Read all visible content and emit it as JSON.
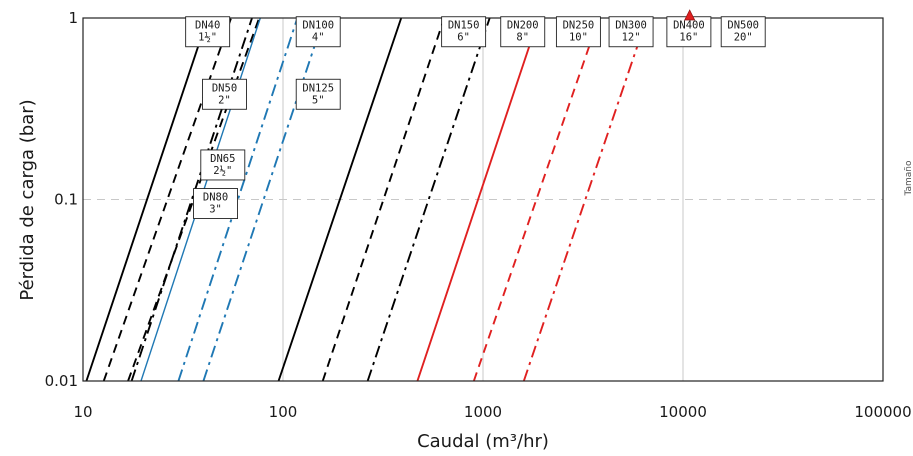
{
  "chart_data": {
    "type": "line",
    "xlabel": "Caudal (m³/hr)",
    "ylabel": "Pérdida de carga (bar)",
    "xscale": "log",
    "yscale": "log",
    "xlim": [
      10,
      100000
    ],
    "ylim": [
      0.01,
      1
    ],
    "x_ticks": [
      "10",
      "100",
      "1000",
      "10000",
      "100000"
    ],
    "y_ticks": [
      "0.01",
      "0.1",
      "1"
    ],
    "grid": "vertical lines at decades, dashed horizontal line at 0.1",
    "side_note": "Tamaño",
    "marker": {
      "shape": "triangle",
      "color": "#e02020",
      "x": 10800,
      "y": 1
    },
    "series": [
      {
        "label": [
          "DN40",
          "1½\""
        ],
        "color": "#000000",
        "style": "solid",
        "x": [
          10.4,
          42
        ],
        "y": [
          0.01,
          1
        ],
        "box_at": [
          42,
          0.84
        ]
      },
      {
        "label": [
          "DN50",
          "2\""
        ],
        "color": "#000000",
        "style": "dash",
        "x": [
          12.7,
          55
        ],
        "y": [
          0.01,
          1
        ],
        "box_at": [
          51,
          0.38
        ]
      },
      {
        "label": [
          "DN65",
          "2½\""
        ],
        "color": "#000000",
        "style": "dashdot",
        "x": [
          17.5,
          70
        ],
        "y": [
          0.01,
          1
        ],
        "box_at": [
          50,
          0.155
        ]
      },
      {
        "label": [
          "DN80",
          "3\""
        ],
        "color": "#000000",
        "style": "dash",
        "x": [
          16.8,
          76
        ],
        "y": [
          0.01,
          1
        ],
        "box_at": [
          46,
          0.095
        ]
      },
      {
        "label": [
          "DN100",
          "4\""
        ],
        "color": "#1f78b4",
        "style": "solid",
        "x": [
          19.5,
          77
        ],
        "y": [
          0.01,
          1
        ],
        "box_at": [
          150,
          0.84
        ]
      },
      {
        "label": [
          "DN125",
          "5\""
        ],
        "color": "#1f78b4",
        "style": "dashdot",
        "x": [
          30,
          118
        ],
        "y": [
          0.01,
          1
        ],
        "box_at": [
          150,
          0.38
        ]
      },
      {
        "label": [],
        "color": "#1f78b4",
        "style": "dashdot",
        "x": [
          40,
          160
        ],
        "y": [
          0.01,
          1
        ]
      },
      {
        "label": [
          "DN150",
          "6\""
        ],
        "color": "#000000",
        "style": "solid",
        "x": [
          95,
          390
        ],
        "y": [
          0.01,
          1
        ],
        "box_at": [
          800,
          0.84
        ]
      },
      {
        "label": [
          "DN200",
          "8\""
        ],
        "color": "#000000",
        "style": "dash",
        "x": [
          158,
          640
        ],
        "y": [
          0.01,
          1
        ],
        "box_at": [
          1580,
          0.84
        ]
      },
      {
        "label": [
          "DN250",
          "10\""
        ],
        "color": "#000000",
        "style": "dashdot",
        "x": [
          265,
          1080
        ],
        "y": [
          0.01,
          1
        ],
        "box_at": [
          3000,
          0.84
        ]
      },
      {
        "label": [
          "DN300",
          "12\""
        ],
        "color": "#e02020",
        "style": "solid",
        "x": [
          470,
          1900
        ],
        "y": [
          0.01,
          1
        ],
        "box_at": [
          5500,
          0.84
        ]
      },
      {
        "label": [
          "DN400",
          "16\""
        ],
        "color": "#e02020",
        "style": "dash",
        "x": [
          900,
          3800
        ],
        "y": [
          0.01,
          1
        ],
        "box_at": [
          10700,
          0.84
        ]
      },
      {
        "label": [
          "DN500",
          "20\""
        ],
        "color": "#e02020",
        "style": "dashdot",
        "x": [
          1600,
          6600
        ],
        "y": [
          0.01,
          1
        ],
        "box_at": [
          20000,
          0.84
        ]
      }
    ]
  }
}
